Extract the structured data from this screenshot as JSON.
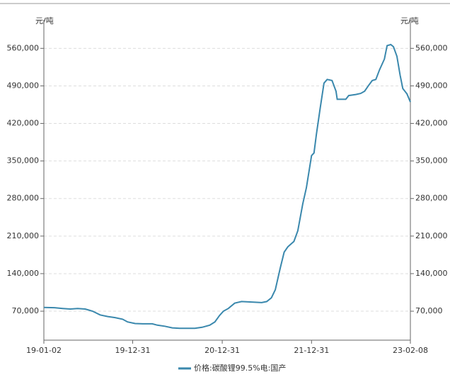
{
  "chart_data": {
    "type": "line",
    "y_label": "元/吨",
    "y2_label": "元/吨",
    "xlim": [
      "19-01-02",
      "23-02-08"
    ],
    "xticks": [
      "19-01-02",
      "19-12-31",
      "20-12-31",
      "21-12-31",
      "23-02-08"
    ],
    "ylim": [
      16000,
      600000
    ],
    "yticks": [
      {
        "value": 70000,
        "label": "70,000"
      },
      {
        "value": 140000,
        "label": "140,000"
      },
      {
        "value": 210000,
        "label": "210,000"
      },
      {
        "value": 280000,
        "label": "280,000"
      },
      {
        "value": 350000,
        "label": "350,000"
      },
      {
        "value": 420000,
        "label": "420,000"
      },
      {
        "value": 490000,
        "label": "490,000"
      },
      {
        "value": 560000,
        "label": "560,000"
      }
    ],
    "y2lim": [
      16000,
      600000
    ],
    "y2ticks": [
      {
        "value": 70000,
        "label": "70,000"
      },
      {
        "value": 140000,
        "label": "140,000"
      },
      {
        "value": 210000,
        "label": "210,000"
      },
      {
        "value": 280000,
        "label": "280,000"
      },
      {
        "value": 350000,
        "label": "350,000"
      },
      {
        "value": 420000,
        "label": "420,000"
      },
      {
        "value": 490000,
        "label": "490,000"
      },
      {
        "value": 560000,
        "label": "560,000"
      }
    ],
    "grid": true,
    "legend": "bottom",
    "x": [
      "19-01-02",
      "19-02-15",
      "19-03-20",
      "19-04-20",
      "19-05-20",
      "19-06-20",
      "19-07-20",
      "19-08-20",
      "19-09-20",
      "19-10-20",
      "19-11-20",
      "19-12-10",
      "20-01-10",
      "20-02-10",
      "20-03-20",
      "20-04-10",
      "20-05-10",
      "20-06-10",
      "20-07-10",
      "20-08-10",
      "20-09-10",
      "20-10-10",
      "20-11-10",
      "20-12-01",
      "20-12-20",
      "21-01-05",
      "21-01-25",
      "21-02-20",
      "21-03-20",
      "21-05-01",
      "21-06-10",
      "21-07-01",
      "21-07-20",
      "21-08-05",
      "21-08-25",
      "21-09-10",
      "21-09-25",
      "21-10-20",
      "21-11-05",
      "21-11-25",
      "21-12-10",
      "21-12-31",
      "22-01-10",
      "22-01-20",
      "22-02-05",
      "22-02-20",
      "22-03-05",
      "22-03-25",
      "22-04-10",
      "22-04-15",
      "22-05-20",
      "22-06-01",
      "22-06-30",
      "22-07-20",
      "22-08-05",
      "22-08-20",
      "22-09-05",
      "22-09-20",
      "22-10-05",
      "22-10-25",
      "22-11-05",
      "22-11-20",
      "22-12-01",
      "22-12-15",
      "22-12-28",
      "23-01-08",
      "23-01-25",
      "23-02-08"
    ],
    "series": [
      {
        "name": "价格:碳酸锂99.5%电:国产",
        "color": "#3a88ad",
        "values": [
          77000,
          76500,
          75000,
          74000,
          75000,
          74000,
          70000,
          63000,
          60000,
          58000,
          55000,
          50000,
          47000,
          46500,
          46500,
          44000,
          42000,
          39000,
          38000,
          38000,
          38000,
          40000,
          44000,
          50000,
          62000,
          70000,
          75000,
          85000,
          88000,
          87000,
          86000,
          88000,
          95000,
          110000,
          150000,
          180000,
          190000,
          200000,
          220000,
          270000,
          300000,
          360000,
          365000,
          400000,
          450000,
          495000,
          502000,
          500000,
          480000,
          465000,
          465000,
          472000,
          474000,
          476000,
          480000,
          490000,
          500000,
          502000,
          520000,
          540000,
          565000,
          567000,
          563000,
          545000,
          510000,
          485000,
          475000,
          460000
        ]
      }
    ]
  }
}
